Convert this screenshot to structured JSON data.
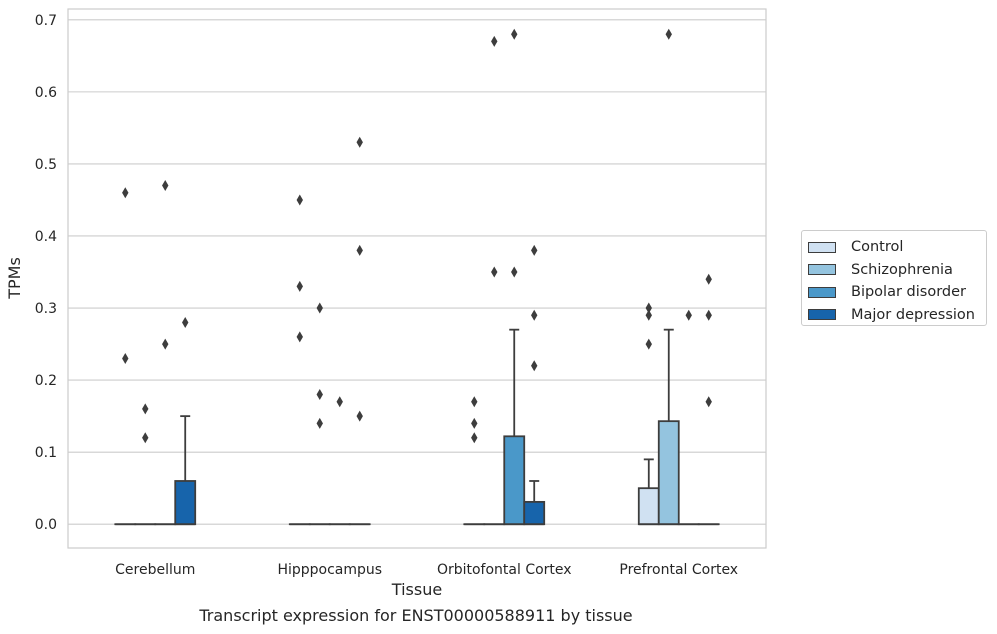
{
  "caption": "Transcript expression for ENST00000588911 by tissue",
  "chart_data": {
    "type": "box",
    "xlabel": "Tissue",
    "ylabel": "TPMs",
    "ylim": [
      -0.033,
      0.715
    ],
    "yticks": [
      "0.0",
      "0.1",
      "0.2",
      "0.3",
      "0.4",
      "0.5",
      "0.6",
      "0.7"
    ],
    "ytick_values": [
      0.0,
      0.1,
      0.2,
      0.3,
      0.4,
      0.5,
      0.6,
      0.7
    ],
    "grid": "horizontal",
    "legend_position": "outside-right",
    "categories": [
      "Cerebellum",
      "Hipppocampus",
      "Orbitofontal Cortex",
      "Prefrontal Cortex"
    ],
    "series": [
      {
        "name": "Control",
        "color": "#d0e1f2",
        "boxes": [
          {
            "min": 0,
            "q1": 0,
            "median": 0,
            "q3": 0,
            "max": 0,
            "outliers": [
              0.46,
              0.23
            ]
          },
          {
            "min": 0,
            "q1": 0,
            "median": 0,
            "q3": 0,
            "max": 0,
            "outliers": [
              0.45,
              0.33,
              0.26
            ]
          },
          {
            "min": 0,
            "q1": 0,
            "median": 0,
            "q3": 0,
            "max": 0,
            "outliers": [
              0.17,
              0.14,
              0.12
            ]
          },
          {
            "min": 0,
            "q1": 0,
            "median": 0,
            "q3": 0.05,
            "max": 0.09,
            "outliers": [
              0.3,
              0.29,
              0.25
            ]
          }
        ]
      },
      {
        "name": "Schizophrenia",
        "color": "#94c4df",
        "boxes": [
          {
            "min": 0,
            "q1": 0,
            "median": 0,
            "q3": 0,
            "max": 0,
            "outliers": [
              0.16,
              0.12
            ]
          },
          {
            "min": 0,
            "q1": 0,
            "median": 0,
            "q3": 0,
            "max": 0,
            "outliers": [
              0.3,
              0.18,
              0.14
            ]
          },
          {
            "min": 0,
            "q1": 0,
            "median": 0,
            "q3": 0,
            "max": 0,
            "outliers": [
              0.67,
              0.35
            ]
          },
          {
            "min": 0,
            "q1": 0,
            "median": 0,
            "q3": 0.143,
            "max": 0.27,
            "outliers": [
              0.68
            ]
          }
        ]
      },
      {
        "name": "Bipolar disorder",
        "color": "#4a98c9",
        "boxes": [
          {
            "min": 0,
            "q1": 0,
            "median": 0,
            "q3": 0,
            "max": 0,
            "outliers": [
              0.47,
              0.25
            ]
          },
          {
            "min": 0,
            "q1": 0,
            "median": 0,
            "q3": 0,
            "max": 0,
            "outliers": [
              0.17
            ]
          },
          {
            "min": 0,
            "q1": 0,
            "median": 0,
            "q3": 0.122,
            "max": 0.27,
            "outliers": [
              0.68,
              0.35
            ]
          },
          {
            "min": 0,
            "q1": 0,
            "median": 0,
            "q3": 0,
            "max": 0,
            "outliers": [
              0.29
            ]
          }
        ]
      },
      {
        "name": "Major depression",
        "color": "#1764ab",
        "boxes": [
          {
            "min": 0,
            "q1": 0,
            "median": 0,
            "q3": 0.06,
            "max": 0.15,
            "outliers": [
              0.28
            ]
          },
          {
            "min": 0,
            "q1": 0,
            "median": 0,
            "q3": 0,
            "max": 0,
            "outliers": [
              0.53,
              0.38,
              0.15
            ]
          },
          {
            "min": 0,
            "q1": 0,
            "median": 0,
            "q3": 0.031,
            "max": 0.06,
            "outliers": [
              0.38,
              0.29,
              0.22
            ]
          },
          {
            "min": 0,
            "q1": 0,
            "median": 0,
            "q3": 0,
            "max": 0,
            "outliers": [
              0.34,
              0.29,
              0.17
            ]
          }
        ]
      }
    ]
  }
}
